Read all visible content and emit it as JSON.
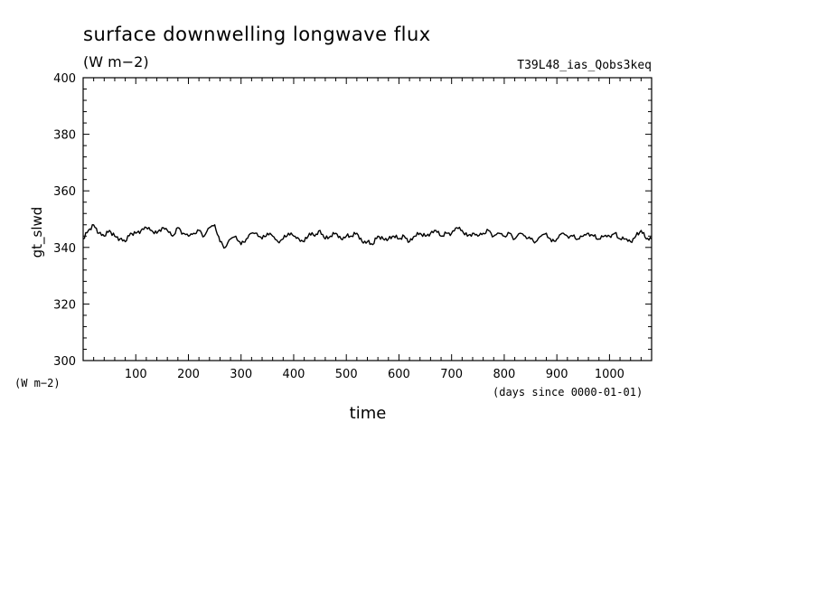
{
  "chart_data": {
    "type": "line",
    "title": "surface downwelling longwave flux",
    "subtitle": "(W m−2)",
    "run_label": "T39L48_ias_Qobs3keq",
    "xlabel": "time",
    "x_unit": "(days since 0000-01-01)",
    "ylabel": "gt_slwd",
    "y_unit": "(W m−2)",
    "xlim": [
      0,
      1080
    ],
    "ylim": [
      300,
      400
    ],
    "x_ticks": [
      100,
      200,
      300,
      400,
      500,
      600,
      700,
      800,
      900,
      1000
    ],
    "y_ticks": [
      300,
      320,
      340,
      360,
      380,
      400
    ],
    "grid": false,
    "series": [
      {
        "x": [
          0,
          10,
          20,
          30,
          40,
          50,
          60,
          70,
          80,
          90,
          100,
          110,
          120,
          130,
          140,
          150,
          160,
          170,
          180,
          190,
          200,
          210,
          220,
          230,
          240,
          250,
          260,
          270,
          280,
          290,
          300,
          310,
          320,
          330,
          340,
          350,
          360,
          370,
          380,
          390,
          400,
          410,
          420,
          430,
          440,
          450,
          460,
          470,
          480,
          490,
          500,
          510,
          520,
          530,
          540,
          550,
          560,
          570,
          580,
          590,
          600,
          610,
          620,
          630,
          640,
          650,
          660,
          670,
          680,
          690,
          700,
          710,
          720,
          730,
          740,
          750,
          760,
          770,
          780,
          790,
          800,
          810,
          820,
          830,
          840,
          850,
          860,
          870,
          880,
          890,
          900,
          910,
          920,
          930,
          940,
          950,
          960,
          970,
          980,
          990,
          1000,
          1010,
          1020,
          1030,
          1040,
          1050,
          1060,
          1070,
          1080
        ],
        "values": [
          343,
          346,
          348,
          345,
          344,
          346,
          344,
          343,
          342,
          345,
          345,
          346,
          347,
          346,
          345,
          347,
          346,
          344,
          347,
          345,
          344,
          345,
          346,
          344,
          347,
          348,
          342,
          340,
          343,
          344,
          341,
          343,
          345,
          345,
          343,
          345,
          344,
          342,
          343,
          345,
          344,
          343,
          342,
          345,
          344,
          346,
          343,
          344,
          345,
          343,
          344,
          344,
          345,
          342,
          342,
          341,
          344,
          343,
          343,
          344,
          343,
          344,
          342,
          344,
          345,
          344,
          345,
          346,
          344,
          345,
          345,
          347,
          346,
          344,
          345,
          344,
          345,
          346,
          344,
          345,
          344,
          345,
          343,
          345,
          344,
          343,
          342,
          344,
          345,
          342,
          343,
          345,
          344,
          344,
          343,
          344,
          345,
          344,
          343,
          344,
          344,
          345,
          343,
          343,
          342,
          344,
          346,
          343,
          343
        ]
      }
    ]
  }
}
